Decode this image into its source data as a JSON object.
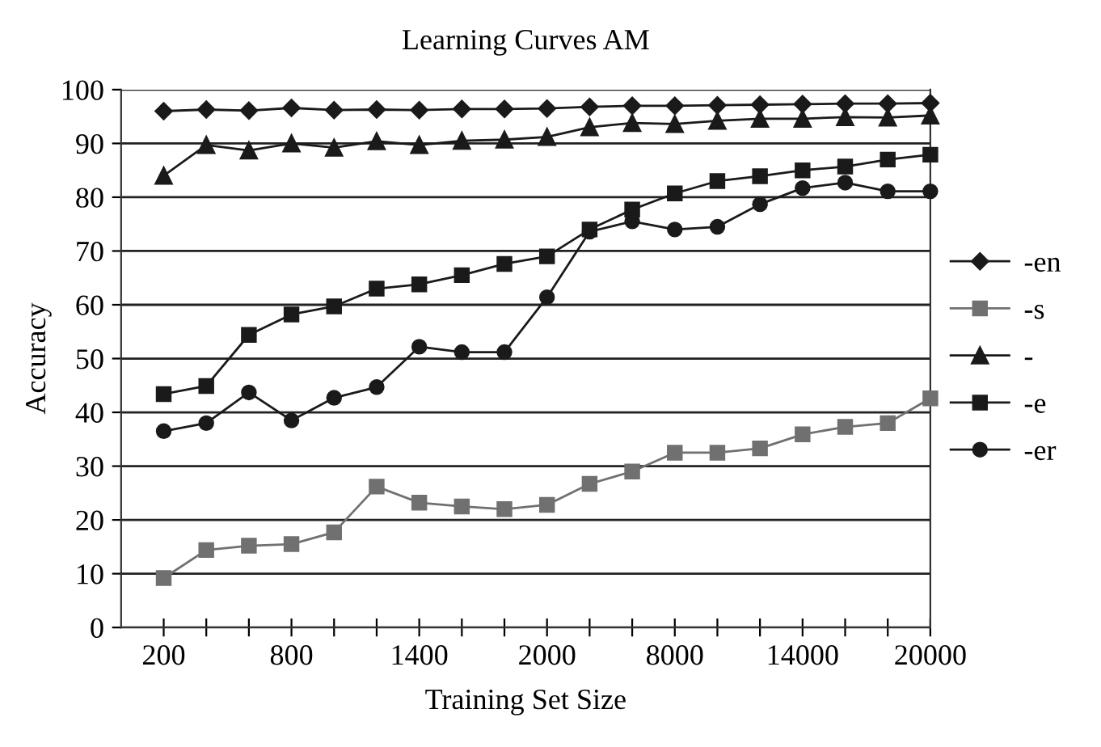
{
  "chart_data": {
    "type": "line",
    "title": "Learning Curves AM",
    "xlabel": "Training Set Size",
    "ylabel": "Accuracy",
    "categories": [
      "200",
      null,
      null,
      "800",
      null,
      null,
      "1400",
      null,
      null,
      "2000",
      null,
      null,
      "8000",
      null,
      null,
      "14000",
      null,
      null,
      "20000"
    ],
    "ylim": [
      0,
      100
    ],
    "yticks": [
      0,
      10,
      20,
      30,
      40,
      50,
      60,
      70,
      80,
      90,
      100
    ],
    "grid": "y",
    "legend": "right",
    "series": [
      {
        "name": "-en",
        "color": "#1a1a1a",
        "marker": "diamond",
        "values": [
          96,
          96.3,
          96.1,
          96.6,
          96.2,
          96.3,
          96.2,
          96.4,
          96.4,
          96.5,
          96.8,
          97,
          97,
          97.1,
          97.2,
          97.3,
          97.4,
          97.4,
          97.5
        ]
      },
      {
        "name": "-s",
        "color": "#707070",
        "marker": "square",
        "values": [
          9.2,
          14.4,
          15.2,
          15.5,
          17.7,
          26.2,
          23.2,
          22.5,
          22,
          22.8,
          26.7,
          29,
          32.5,
          32.5,
          33.3,
          35.9,
          37.3,
          38,
          42.6
        ]
      },
      {
        "name": "-",
        "color": "#1a1a1a",
        "marker": "triangle",
        "values": [
          84,
          89.7,
          88.7,
          90,
          89.2,
          90.4,
          89.7,
          90.5,
          90.7,
          91.2,
          93,
          93.8,
          93.6,
          94.2,
          94.6,
          94.6,
          94.9,
          94.8,
          95.2
        ]
      },
      {
        "name": "-e",
        "color": "#1a1a1a",
        "marker": "square",
        "values": [
          43.4,
          44.9,
          54.4,
          58.2,
          59.7,
          63,
          63.8,
          65.5,
          67.6,
          69,
          74,
          77.7,
          80.7,
          83,
          83.9,
          85,
          85.7,
          87,
          87.9
        ]
      },
      {
        "name": "-er",
        "color": "#1a1a1a",
        "marker": "circle",
        "values": [
          36.5,
          38,
          43.7,
          38.5,
          42.7,
          44.7,
          52.2,
          51.2,
          51.2,
          61.4,
          73.6,
          75.5,
          74,
          74.5,
          78.7,
          81.7,
          82.7,
          81.1,
          81.1
        ]
      }
    ]
  }
}
